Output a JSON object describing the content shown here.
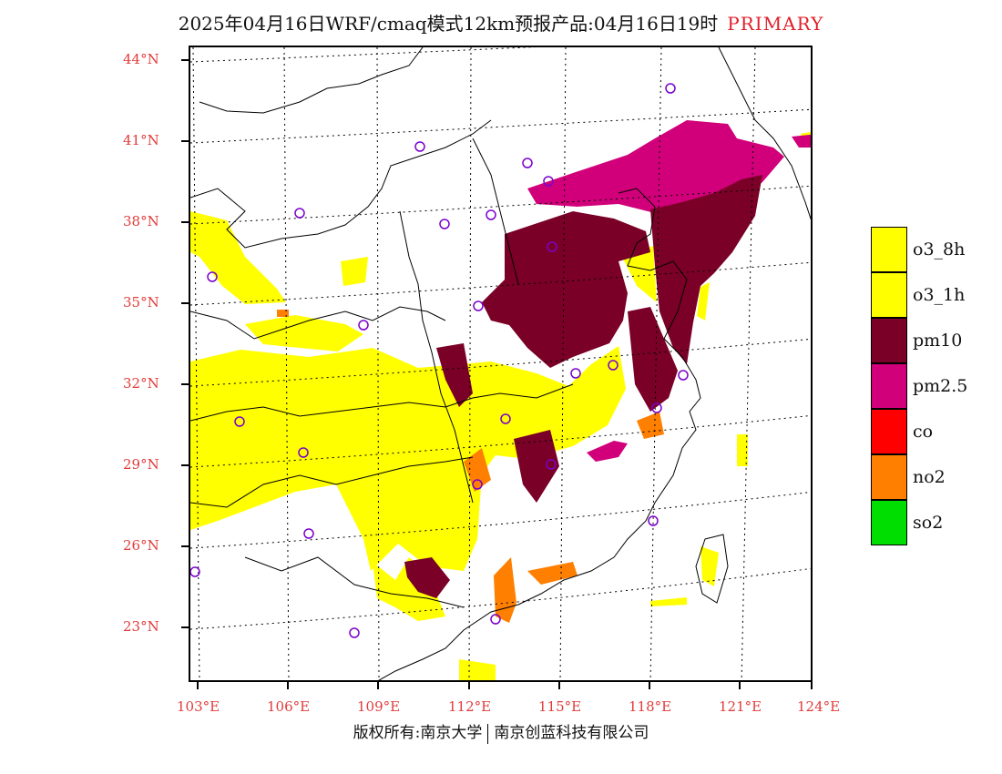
{
  "title": {
    "main": "2025年04月16日WRF/cmaq模式12km预报产品:04月16日19时",
    "tag": "PRIMARY"
  },
  "latitude_labels": [
    "44°N",
    "41°N",
    "38°N",
    "35°N",
    "32°N",
    "29°N",
    "26°N",
    "23°N"
  ],
  "longitude_labels": [
    "103°E",
    "106°E",
    "109°E",
    "112°E",
    "115°E",
    "118°E",
    "121°E",
    "124°E"
  ],
  "legend": {
    "items": [
      {
        "label": "o3_8h",
        "color": "#ffff00"
      },
      {
        "label": "o3_1h",
        "color": "#ffff00"
      },
      {
        "label": "pm10",
        "color": "#7a0028"
      },
      {
        "label": "pm2.5",
        "color": "#d1007a"
      },
      {
        "label": "co",
        "color": "#ff0000"
      },
      {
        "label": "no2",
        "color": "#ff7f00"
      },
      {
        "label": "so2",
        "color": "#00dd00"
      }
    ]
  },
  "footer": {
    "left": "版权所有:南京大学",
    "right": "南京创蓝科技有限公司"
  },
  "colors": {
    "yellow": "#ffff00",
    "pm10": "#7a0028",
    "pm25": "#d1007a",
    "no2": "#ff7f00",
    "city_marker": "#7a00cc",
    "label_red": "#e23b3b"
  }
}
